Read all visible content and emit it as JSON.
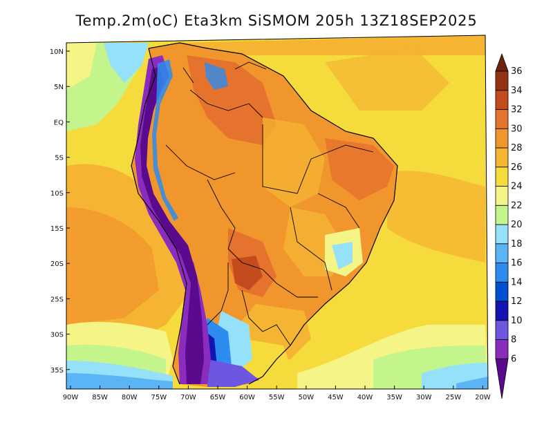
{
  "title": "Temp.2m(oC) Eta3km SiSMOM 205h 13Z18SEP2025",
  "latitude_labels": [
    "10N",
    "5N",
    "EQ",
    "5S",
    "10S",
    "15S",
    "20S",
    "25S",
    "30S",
    "35S"
  ],
  "longitude_labels": [
    "90W",
    "85W",
    "80W",
    "75W",
    "70W",
    "65W",
    "60W",
    "55W",
    "50W",
    "45W",
    "40W",
    "35W",
    "30W",
    "25W",
    "20W"
  ],
  "colorbar": {
    "unit": "oC",
    "levels": [
      6,
      8,
      10,
      12,
      14,
      16,
      18,
      20,
      22,
      24,
      26,
      28,
      30,
      32,
      34,
      36
    ],
    "labels": [
      "6",
      "8",
      "10",
      "12",
      "14",
      "16",
      "18",
      "20",
      "22",
      "24",
      "26",
      "28",
      "30",
      "32",
      "34",
      "36"
    ],
    "colors": [
      "#5a0a8c",
      "#8a2cbe",
      "#6e56e0",
      "#1414b4",
      "#0050d2",
      "#2c8cf0",
      "#5ab4f5",
      "#96e1fa",
      "#c3f58c",
      "#f5f587",
      "#f5dc3c",
      "#f5b432",
      "#f0962d",
      "#e6732d",
      "#c34b1e",
      "#963214",
      "#6e230a"
    ]
  },
  "colors": {
    "cold_andes": "#5a0a8c",
    "ocean_cool": "#5ab4f5",
    "warm_land": "#f0962d",
    "hot_core": "#e6732d",
    "borders": "#000000"
  }
}
